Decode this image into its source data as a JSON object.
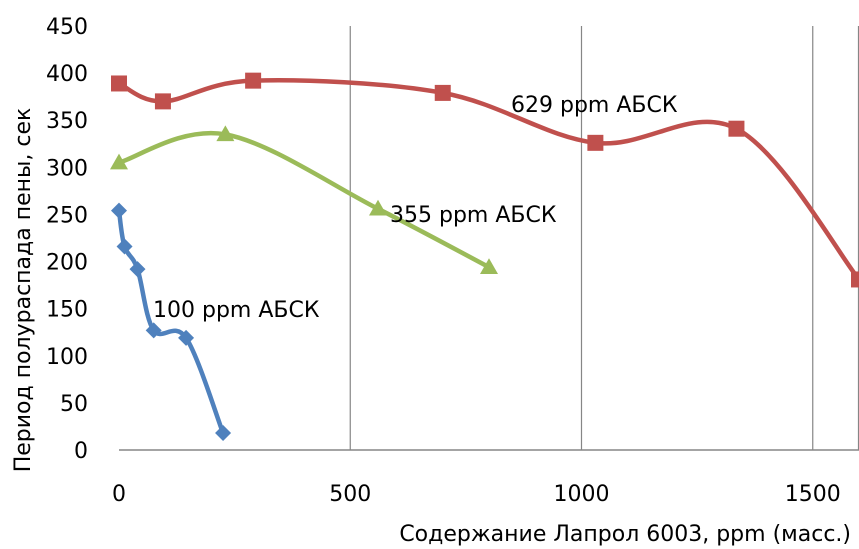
{
  "chart_data": {
    "type": "line",
    "xlabel": "Содержание Лапрол 6003, ppm (масс.)",
    "ylabel": "Период полураспада пены, сек",
    "xlim": [
      0,
      1600
    ],
    "ylim": [
      0,
      450
    ],
    "x_ticks": [
      "0",
      "500",
      "1000",
      "1500"
    ],
    "y_ticks": [
      "0",
      "50",
      "100",
      "150",
      "200",
      "250",
      "300",
      "350",
      "400",
      "450"
    ],
    "grid": "vertical",
    "series": [
      {
        "name": "100 ppm АБСК",
        "color": "#4F81BD",
        "marker": "diamond",
        "x": [
          0,
          12,
          40,
          75,
          145,
          225
        ],
        "y": [
          254,
          216,
          192,
          127,
          119,
          18
        ]
      },
      {
        "name": "355 ppm АБСК",
        "color": "#9BBB59",
        "marker": "triangle",
        "x": [
          0,
          230,
          560,
          800
        ],
        "y": [
          305,
          335,
          256,
          194
        ]
      },
      {
        "name": "629 ppm АБСК",
        "color": "#C0504D",
        "marker": "square",
        "x": [
          0,
          95,
          290,
          700,
          1030,
          1335,
          1600
        ],
        "y": [
          389,
          370,
          392,
          379,
          326,
          341,
          181
        ]
      }
    ]
  }
}
